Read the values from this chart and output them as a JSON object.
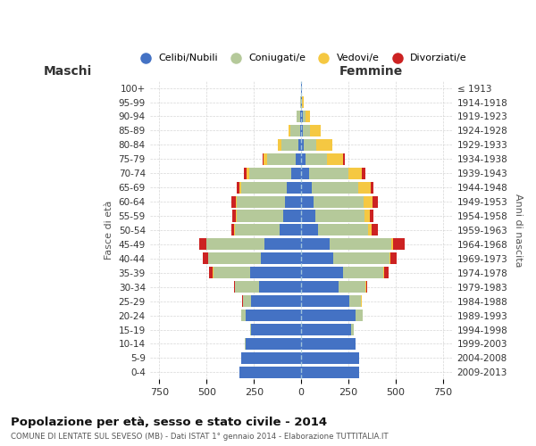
{
  "age_groups": [
    "100+",
    "95-99",
    "90-94",
    "85-89",
    "80-84",
    "75-79",
    "70-74",
    "65-69",
    "60-64",
    "55-59",
    "50-54",
    "45-49",
    "40-44",
    "35-39",
    "30-34",
    "25-29",
    "20-24",
    "15-19",
    "10-14",
    "5-9",
    "0-4"
  ],
  "birth_years": [
    "≤ 1913",
    "1914-1918",
    "1919-1923",
    "1924-1928",
    "1929-1933",
    "1934-1938",
    "1939-1943",
    "1944-1948",
    "1949-1953",
    "1954-1958",
    "1959-1963",
    "1964-1968",
    "1969-1973",
    "1974-1978",
    "1979-1983",
    "1984-1988",
    "1989-1993",
    "1994-1998",
    "1999-2003",
    "2004-2008",
    "2009-2013"
  ],
  "males": {
    "celibi": [
      2,
      2,
      5,
      8,
      15,
      30,
      55,
      75,
      85,
      95,
      115,
      195,
      215,
      270,
      225,
      265,
      295,
      265,
      295,
      315,
      325
    ],
    "coniugati": [
      1,
      3,
      18,
      50,
      90,
      150,
      220,
      240,
      255,
      245,
      235,
      305,
      275,
      195,
      125,
      45,
      20,
      5,
      2,
      1,
      0
    ],
    "vedovi": [
      0,
      0,
      2,
      10,
      18,
      18,
      12,
      10,
      6,
      4,
      3,
      3,
      3,
      2,
      1,
      0,
      0,
      0,
      0,
      0,
      0
    ],
    "divorziati": [
      0,
      0,
      0,
      0,
      0,
      6,
      18,
      18,
      22,
      18,
      18,
      35,
      25,
      18,
      6,
      2,
      0,
      0,
      0,
      0,
      0
    ]
  },
  "females": {
    "nubili": [
      2,
      3,
      8,
      10,
      15,
      22,
      42,
      55,
      65,
      75,
      88,
      150,
      170,
      220,
      195,
      255,
      285,
      265,
      285,
      305,
      308
    ],
    "coniugate": [
      1,
      3,
      15,
      35,
      65,
      115,
      205,
      245,
      265,
      258,
      265,
      325,
      295,
      215,
      145,
      62,
      38,
      12,
      3,
      1,
      0
    ],
    "vedove": [
      3,
      6,
      25,
      60,
      85,
      85,
      75,
      65,
      45,
      28,
      18,
      12,
      6,
      4,
      2,
      1,
      0,
      0,
      0,
      0,
      0
    ],
    "divorziate": [
      0,
      0,
      0,
      0,
      0,
      6,
      18,
      18,
      28,
      22,
      35,
      60,
      35,
      22,
      6,
      2,
      0,
      0,
      0,
      0,
      0
    ]
  },
  "colors": {
    "celibi_nubili": "#4472c4",
    "coniugati": "#b5c99a",
    "vedovi": "#f5c842",
    "divorziati": "#cc2222"
  },
  "title": "Popolazione per età, sesso e stato civile - 2014",
  "subtitle": "COMUNE DI LENTATE SUL SEVESO (MB) - Dati ISTAT 1° gennaio 2014 - Elaborazione TUTTITALIA.IT",
  "xlabel_left": "Maschi",
  "xlabel_right": "Femmine",
  "ylabel_left": "Fasce di età",
  "ylabel_right": "Anni di nascita",
  "xlim": 800,
  "legend_labels": [
    "Celibi/Nubili",
    "Coniugati/e",
    "Vedovi/e",
    "Divorziati/e"
  ],
  "background_color": "#ffffff",
  "grid_color": "#cccccc"
}
